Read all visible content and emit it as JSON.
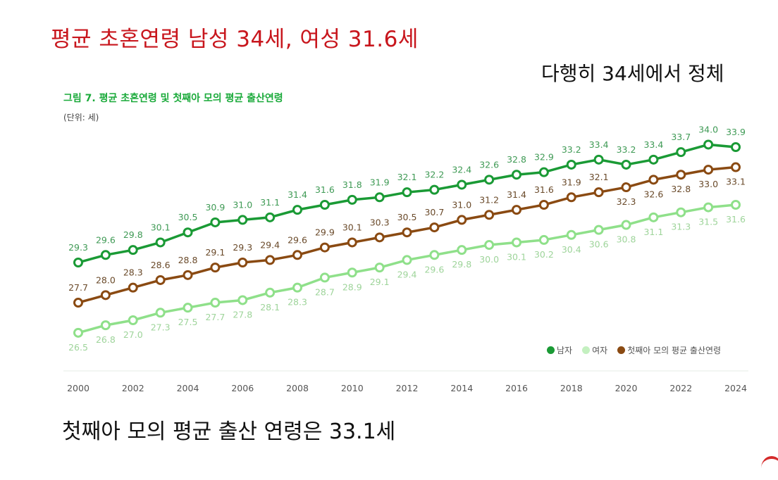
{
  "headline": "평균 초혼연령 남성 34세, 여성 31.6세",
  "subheadline": "다행히 34세에서 정체",
  "footer_text": "첫째아 모의 평균 출산 연령은 33.1세",
  "figure": {
    "title": "그림 7. 평균 초혼연령 및 첫째아 모의 평균 출산연령",
    "unit": "(단위: 세)"
  },
  "legend": {
    "male": "남자",
    "female": "여자",
    "first_birth": "첫째아 모의 평균 출산연령"
  },
  "colors": {
    "headline": "#c8161d",
    "fig_title": "#1aaa3a",
    "male": "#1a9a35",
    "female": "#8fe08a",
    "first_birth": "#8a4a12"
  },
  "chart_data": {
    "type": "line",
    "title": "그림 7. 평균 초혼연령 및 첫째아 모의 평균 출산연령",
    "subtitle": "(단위: 세)",
    "xlabel": "",
    "ylabel": "세",
    "x": [
      2000,
      2001,
      2002,
      2003,
      2004,
      2005,
      2006,
      2007,
      2008,
      2009,
      2010,
      2011,
      2012,
      2013,
      2014,
      2015,
      2016,
      2017,
      2018,
      2019,
      2020,
      2021,
      2022,
      2023,
      2024
    ],
    "x_tick_labels": [
      "2000",
      "2002",
      "2004",
      "2006",
      "2008",
      "2010",
      "2012",
      "2014",
      "2016",
      "2018",
      "2020",
      "2022",
      "2024"
    ],
    "series": [
      {
        "name": "남자",
        "color": "#1a9a35",
        "values": [
          29.3,
          29.6,
          29.8,
          30.1,
          30.5,
          30.9,
          31.0,
          31.1,
          31.4,
          31.6,
          31.8,
          31.9,
          32.1,
          32.2,
          32.4,
          32.6,
          32.8,
          32.9,
          33.2,
          33.4,
          33.2,
          33.4,
          33.7,
          34.0,
          33.9
        ]
      },
      {
        "name": "여자",
        "color": "#8fe08a",
        "values": [
          26.5,
          26.8,
          27.0,
          27.3,
          27.5,
          27.7,
          27.8,
          28.1,
          28.3,
          28.7,
          28.9,
          29.1,
          29.4,
          29.6,
          29.8,
          30.0,
          30.1,
          30.2,
          30.4,
          30.6,
          30.8,
          31.1,
          31.3,
          31.5,
          31.6
        ]
      },
      {
        "name": "첫째아 모의 평균 출산연령",
        "color": "#8a4a12",
        "values": [
          27.7,
          28.0,
          28.3,
          28.6,
          28.8,
          29.1,
          29.3,
          29.4,
          29.6,
          29.9,
          30.1,
          30.3,
          30.5,
          30.7,
          31.0,
          31.2,
          31.4,
          31.6,
          31.9,
          32.1,
          32.3,
          32.6,
          32.8,
          33.0,
          33.1
        ]
      }
    ],
    "data_labels": true,
    "grid": false,
    "legend_position": "bottom-right"
  }
}
